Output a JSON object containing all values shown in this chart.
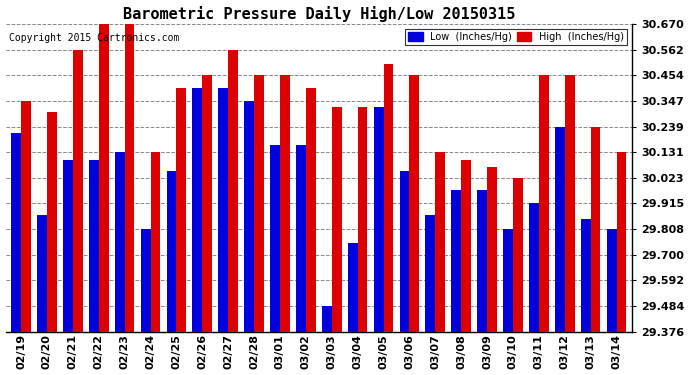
{
  "title": "Barometric Pressure Daily High/Low 20150315",
  "copyright": "Copyright 2015 Cartronics.com",
  "legend_low": "Low  (Inches/Hg)",
  "legend_high": "High  (Inches/Hg)",
  "ylabel_right_ticks": [
    29.376,
    29.484,
    29.592,
    29.7,
    29.808,
    29.915,
    30.023,
    30.131,
    30.239,
    30.347,
    30.454,
    30.562,
    30.67
  ],
  "dates": [
    "02/19",
    "02/20",
    "02/21",
    "02/22",
    "02/23",
    "02/24",
    "02/25",
    "02/26",
    "02/27",
    "02/28",
    "03/01",
    "03/02",
    "03/03",
    "03/04",
    "03/05",
    "03/06",
    "03/07",
    "03/08",
    "03/09",
    "03/10",
    "03/11",
    "03/12",
    "03/13",
    "03/14"
  ],
  "low_values": [
    30.212,
    29.868,
    30.1,
    30.1,
    30.131,
    29.808,
    30.05,
    30.4,
    30.4,
    30.347,
    30.16,
    30.16,
    29.484,
    29.75,
    30.32,
    30.05,
    29.868,
    29.97,
    29.97,
    29.808,
    29.915,
    30.239,
    29.85,
    29.808
  ],
  "high_values": [
    30.347,
    30.3,
    30.562,
    30.67,
    30.67,
    30.131,
    30.4,
    30.454,
    30.562,
    30.454,
    30.454,
    30.4,
    30.32,
    30.32,
    30.5,
    30.454,
    30.131,
    30.1,
    30.07,
    30.023,
    30.454,
    30.454,
    30.239,
    30.131
  ],
  "bar_width": 0.38,
  "low_color": "#0000dd",
  "high_color": "#dd0000",
  "bg_color": "#ffffff",
  "grid_color": "#888888",
  "ylim_min": 29.376,
  "ylim_max": 30.67,
  "title_fontsize": 11,
  "tick_fontsize": 8,
  "copyright_fontsize": 7
}
